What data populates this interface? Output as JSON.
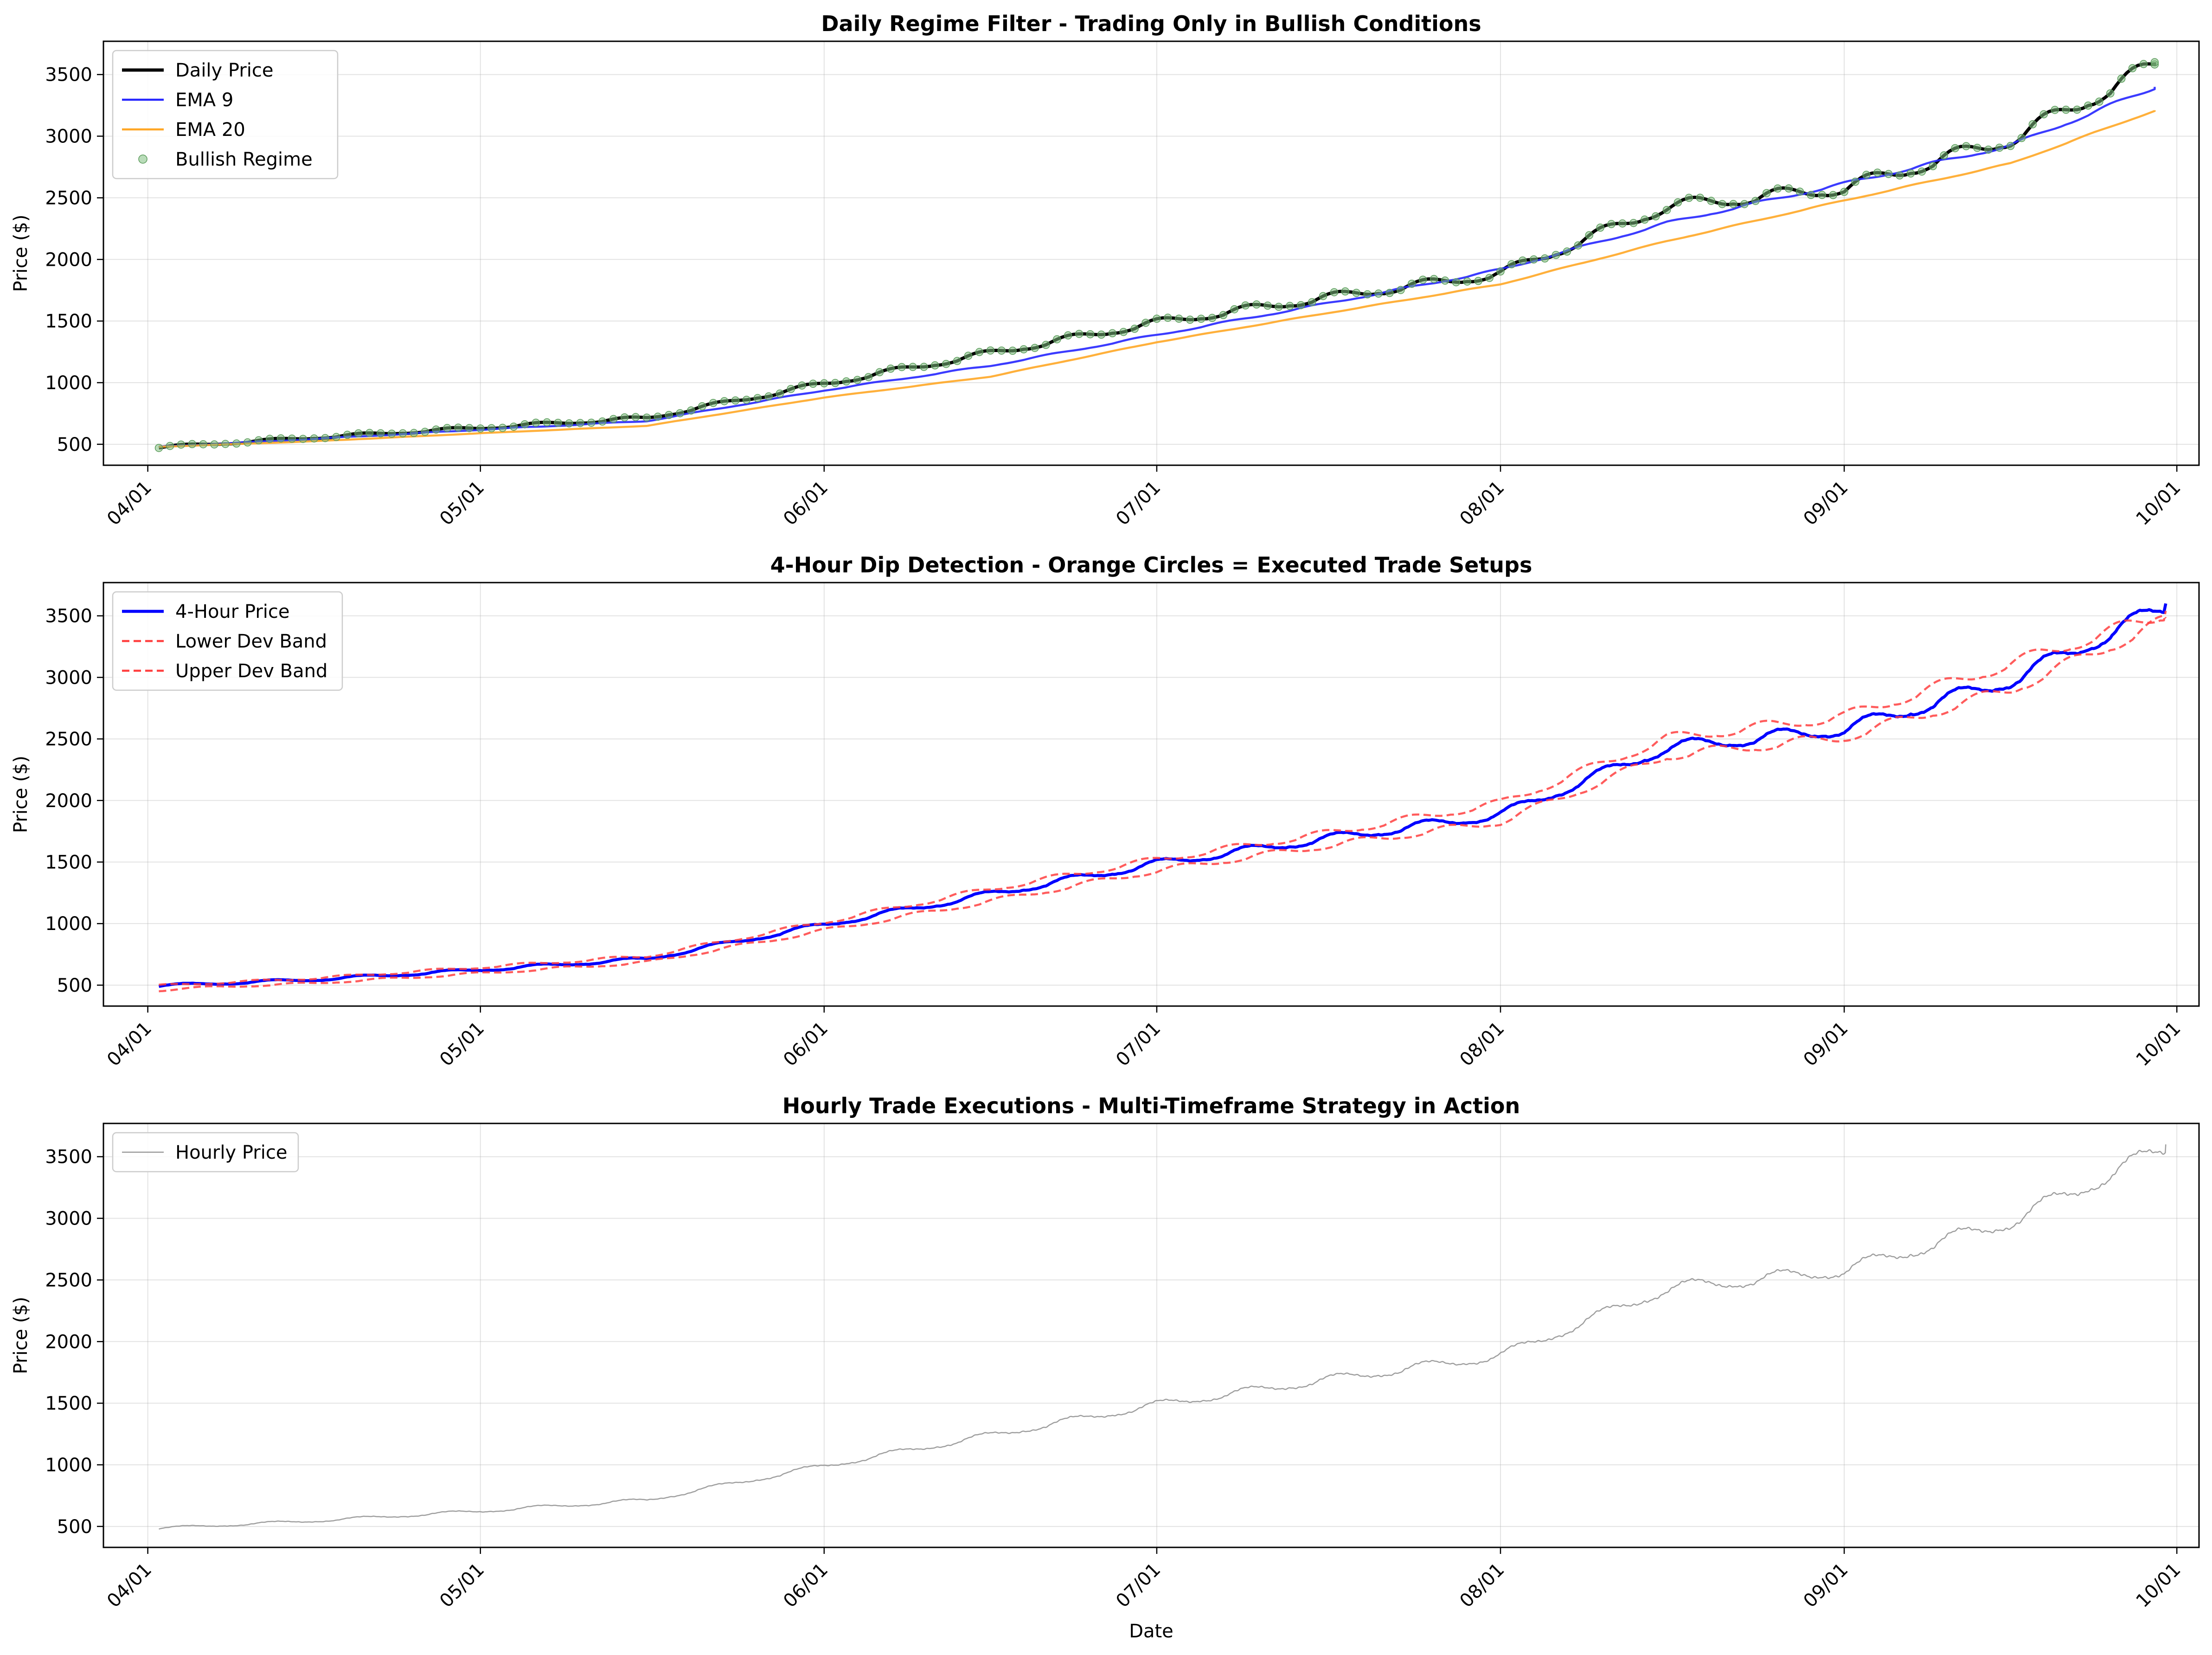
{
  "chart_data": [
    {
      "type": "line",
      "title": "Daily Regime Filter - Trading Only in Bullish Conditions",
      "xlabel": "",
      "ylabel": "Price ($)",
      "x_ticks": [
        "04/01",
        "05/01",
        "06/01",
        "07/01",
        "08/01",
        "09/01",
        "10/01"
      ],
      "y_ticks": [
        500,
        1000,
        1500,
        2000,
        2500,
        3000,
        3500
      ],
      "xlim": [
        "2024-03-28",
        "2024-10-03"
      ],
      "ylim": [
        330,
        3770
      ],
      "grid": true,
      "legend": "top-left",
      "x": [
        "2024-04-02",
        "2024-04-16",
        "2024-05-01",
        "2024-05-16",
        "2024-06-01",
        "2024-06-16",
        "2024-07-01",
        "2024-07-16",
        "2024-08-01",
        "2024-08-16",
        "2024-09-01",
        "2024-09-16",
        "2024-09-29"
      ],
      "series": [
        {
          "name": "Daily Price",
          "color": "#000000",
          "values": [
            480,
            560,
            640,
            720,
            1000,
            1250,
            1500,
            1700,
            1900,
            2450,
            2600,
            3000,
            3600
          ]
        },
        {
          "name": "EMA 9",
          "color": "#2626ff",
          "values": [
            480,
            545,
            620,
            690,
            940,
            1140,
            1390,
            1640,
            1920,
            2300,
            2620,
            2930,
            3400
          ]
        },
        {
          "name": "EMA 20",
          "color": "#ffa726",
          "values": [
            480,
            525,
            590,
            650,
            880,
            1050,
            1330,
            1560,
            1800,
            2150,
            2480,
            2780,
            3210
          ]
        },
        {
          "name": "Bullish Regime",
          "color": "#7fbf7f",
          "marker": "circle",
          "values": [
            480,
            560,
            640,
            720,
            1000,
            1250,
            1500,
            1700,
            1900,
            2450,
            2600,
            3000,
            3600
          ]
        }
      ]
    },
    {
      "type": "line",
      "title": "4-Hour Dip Detection - Orange Circles = Executed Trade Setups",
      "xlabel": "",
      "ylabel": "Price ($)",
      "x_ticks": [
        "04/01",
        "05/01",
        "06/01",
        "07/01",
        "08/01",
        "09/01",
        "10/01"
      ],
      "y_ticks": [
        500,
        1000,
        1500,
        2000,
        2500,
        3000,
        3500
      ],
      "xlim": [
        "2024-03-28",
        "2024-10-03"
      ],
      "ylim": [
        330,
        3770
      ],
      "grid": true,
      "legend": "top-left",
      "x": [
        "2024-04-02",
        "2024-04-16",
        "2024-05-01",
        "2024-05-16",
        "2024-06-01",
        "2024-06-16",
        "2024-07-01",
        "2024-07-16",
        "2024-08-01",
        "2024-08-16",
        "2024-09-01",
        "2024-09-16",
        "2024-09-30"
      ],
      "series": [
        {
          "name": "4-Hour Price",
          "color": "#0000ff",
          "values": [
            500,
            550,
            630,
            720,
            1000,
            1250,
            1500,
            1700,
            1900,
            2450,
            2600,
            3000,
            3600
          ]
        },
        {
          "name": "Lower Dev Band",
          "color": "#ff4040",
          "values": [
            470,
            520,
            600,
            690,
            950,
            1190,
            1440,
            1640,
            1840,
            2380,
            2530,
            2920,
            3480
          ]
        },
        {
          "name": "Upper Dev Band",
          "color": "#ff4040",
          "values": [
            500,
            560,
            650,
            740,
            1020,
            1290,
            1530,
            1740,
            1990,
            2520,
            2700,
            3130,
            3540
          ]
        }
      ]
    },
    {
      "type": "line",
      "title": "Hourly Trade Executions - Multi-Timeframe Strategy in Action",
      "xlabel": "Date",
      "ylabel": "Price ($)",
      "x_ticks": [
        "04/01",
        "05/01",
        "06/01",
        "07/01",
        "08/01",
        "09/01",
        "10/01"
      ],
      "y_ticks": [
        500,
        1000,
        1500,
        2000,
        2500,
        3000,
        3500
      ],
      "xlim": [
        "2024-03-28",
        "2024-10-03"
      ],
      "ylim": [
        330,
        3770
      ],
      "grid": true,
      "legend": "top-left",
      "x": [
        "2024-04-02",
        "2024-04-16",
        "2024-05-01",
        "2024-05-16",
        "2024-06-01",
        "2024-06-16",
        "2024-07-01",
        "2024-07-16",
        "2024-08-01",
        "2024-08-16",
        "2024-09-01",
        "2024-09-16",
        "2024-09-30"
      ],
      "series": [
        {
          "name": "Hourly Price",
          "color": "#999999",
          "values": [
            490,
            550,
            630,
            720,
            1000,
            1250,
            1500,
            1700,
            1900,
            2450,
            2600,
            3000,
            3600
          ]
        }
      ]
    }
  ]
}
